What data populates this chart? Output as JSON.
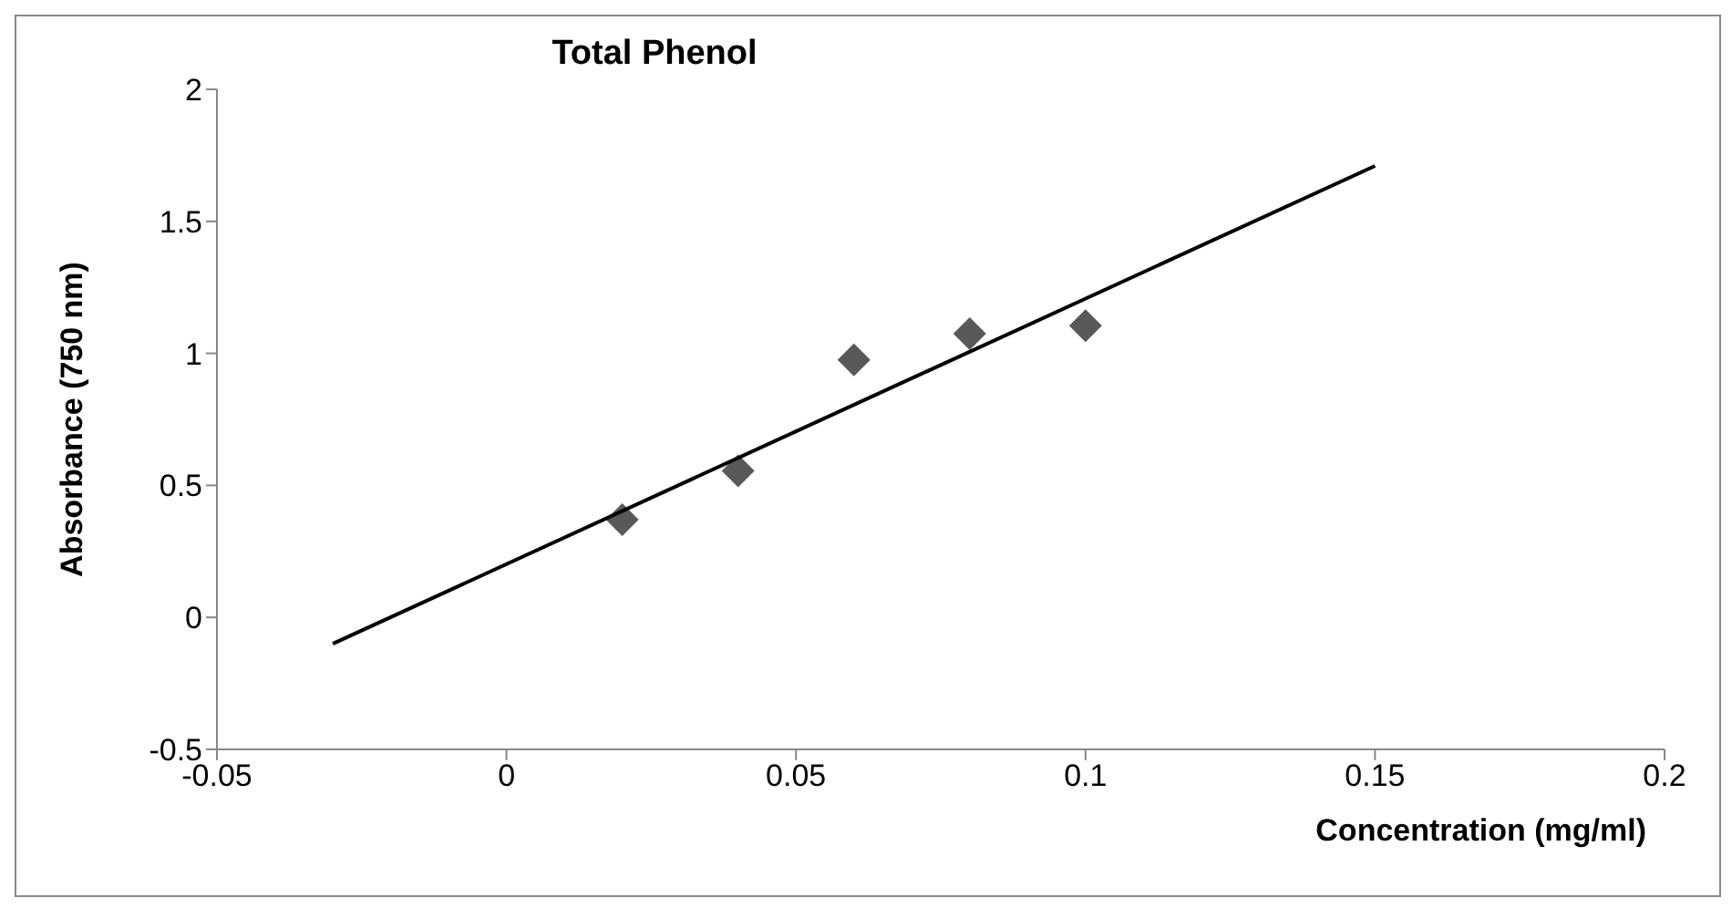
{
  "chart_data": {
    "type": "scatter",
    "title": "Total Phenol",
    "xlabel": "Concentration (mg/ml)",
    "ylabel": "Absorbance (750 nm)",
    "series": [
      {
        "color": "#595959",
        "marker": "diamond",
        "x": [
          0.02,
          0.04,
          0.06,
          0.08,
          0.1
        ],
        "values": [
          0.37,
          0.555,
          0.975,
          1.075,
          1.105
        ]
      },
      {
        "type": "line",
        "color": "#000000",
        "marker": "none",
        "x": [
          -0.03,
          0.15
        ],
        "values": [
          -0.1,
          1.71
        ]
      }
    ],
    "xlim": [
      -0.05,
      0.2
    ],
    "xticks": [
      -0.05,
      0,
      0.05,
      0.1,
      0.15,
      0.2
    ],
    "ylim": [
      -0.5,
      2
    ],
    "yticks": [
      -0.5,
      0,
      0.5,
      1,
      1.5,
      2
    ],
    "grid": false,
    "legend": false
  }
}
